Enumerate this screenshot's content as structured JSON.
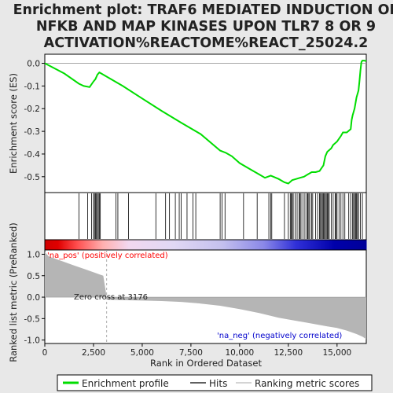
{
  "chart_data": {
    "type": "line",
    "title_lines": [
      "Enrichment plot: TRAF6 MEDIATED INDUCTION OF",
      "NFKB AND MAP KINASES UPON TLR7 8 OR 9",
      "ACTIVATION%REACTOME%REACT_25024.2"
    ],
    "xlabel": "Rank in Ordered Dataset",
    "ylabel_top": "Enrichment score (ES)",
    "ylabel_bottom": "Ranked list metric (PreRanked)",
    "xlim": [
      0,
      16500
    ],
    "x_ticks": [
      0,
      2500,
      5000,
      7500,
      10000,
      12500,
      15000
    ],
    "x_tick_labels": [
      "0",
      "2,500",
      "5,000",
      "7,500",
      "10,000",
      "12,500",
      "15,000"
    ],
    "es_ylim": [
      -0.57,
      0.04
    ],
    "es_ticks": [
      0.0,
      -0.1,
      -0.2,
      -0.3,
      -0.4,
      -0.5
    ],
    "es_tick_labels": [
      "0.0",
      "-0.1",
      "-0.2",
      "-0.3",
      "-0.4",
      "-0.5"
    ],
    "metric_ylim": [
      -1.08,
      1.1
    ],
    "metric_ticks": [
      1.0,
      0.5,
      0.0,
      -0.5,
      -1.0
    ],
    "metric_tick_labels": [
      "1.0",
      "0.5",
      "0.0",
      "-0.5",
      "-1.0"
    ],
    "series": [
      {
        "name": "Enrichment profile",
        "color": "#00dd00",
        "x": [
          0,
          1000,
          1750,
          2000,
          2300,
          2500,
          2600,
          2700,
          2800,
          3000,
          4000,
          5000,
          6000,
          7000,
          8000,
          9000,
          9300,
          9600,
          10000,
          10500,
          11000,
          11300,
          11600,
          12000,
          12300,
          12500,
          12700,
          12900,
          13100,
          13300,
          13500,
          13700,
          13900,
          14100,
          14300,
          14400,
          14500,
          14700,
          14800,
          15000,
          15200,
          15300,
          15500,
          15700,
          15750,
          15800,
          15900,
          16000,
          16100,
          16150,
          16200,
          16250,
          16300,
          16400,
          16500
        ],
        "y": [
          0.0,
          -0.045,
          -0.09,
          -0.1,
          -0.105,
          -0.08,
          -0.07,
          -0.05,
          -0.04,
          -0.05,
          -0.1,
          -0.155,
          -0.21,
          -0.262,
          -0.312,
          -0.385,
          -0.395,
          -0.41,
          -0.44,
          -0.465,
          -0.49,
          -0.505,
          -0.495,
          -0.51,
          -0.525,
          -0.53,
          -0.515,
          -0.51,
          -0.505,
          -0.5,
          -0.49,
          -0.48,
          -0.48,
          -0.475,
          -0.45,
          -0.41,
          -0.39,
          -0.375,
          -0.36,
          -0.345,
          -0.32,
          -0.305,
          -0.305,
          -0.29,
          -0.25,
          -0.23,
          -0.2,
          -0.15,
          -0.12,
          -0.08,
          -0.03,
          0.005,
          0.012,
          0.012,
          0.01
        ]
      }
    ],
    "hits": [
      1750,
      2200,
      2400,
      2500,
      2550,
      2600,
      2650,
      2700,
      2750,
      2800,
      2850,
      3650,
      3750,
      4300,
      5700,
      6200,
      6400,
      6700,
      6900,
      7000,
      7300,
      7600,
      7750,
      9000,
      9100,
      9250,
      10200,
      10900,
      11500,
      11600,
      11650,
      12300,
      12500,
      12600,
      12650,
      12700,
      12750,
      12850,
      12950,
      13050,
      13100,
      13150,
      13250,
      13350,
      13450,
      13500,
      13550,
      13600,
      13700,
      13750,
      13900,
      14000,
      14100,
      14150,
      14200,
      14250,
      14300,
      14350,
      14400,
      14450,
      14500,
      14550,
      14600,
      14700,
      14800,
      14900,
      14950,
      15000,
      15100,
      15200,
      15300,
      15400,
      15600,
      15700,
      15800,
      15850,
      15900,
      15950,
      16000,
      16050,
      16100,
      16200,
      16300
    ],
    "metric": {
      "x": [
        0,
        200,
        500,
        1000,
        1500,
        2000,
        2500,
        3000,
        3176,
        3250,
        4000,
        5000,
        6000,
        7000,
        8000,
        9000,
        10000,
        11000,
        12000,
        13000,
        13500,
        14000,
        14500,
        15000,
        15500,
        16000,
        16300,
        16500
      ],
      "y": [
        1.05,
        0.95,
        0.9,
        0.82,
        0.74,
        0.66,
        0.58,
        0.5,
        0.0,
        -0.06,
        -0.07,
        -0.08,
        -0.09,
        -0.11,
        -0.15,
        -0.2,
        -0.28,
        -0.37,
        -0.48,
        -0.56,
        -0.6,
        -0.64,
        -0.68,
        -0.72,
        -0.78,
        -0.86,
        -0.92,
        -0.98
      ]
    },
    "annotations": {
      "pos": "'na_pos' (positively correlated)",
      "neg": "'na_neg' (negatively correlated)",
      "zero_cross": "Zero cross at 3176"
    },
    "legend": [
      {
        "label": "Enrichment profile",
        "color": "#00dd00"
      },
      {
        "label": "Hits",
        "color": "#000000"
      },
      {
        "label": "Ranking metric scores",
        "color": "#bbbbbb"
      }
    ],
    "colors": {
      "background": "#e8e8e8",
      "pos_text": "#ff0000",
      "neg_text": "#0000cc",
      "metric_fill": "#b5b5b5",
      "profile": "#00dd00"
    }
  }
}
